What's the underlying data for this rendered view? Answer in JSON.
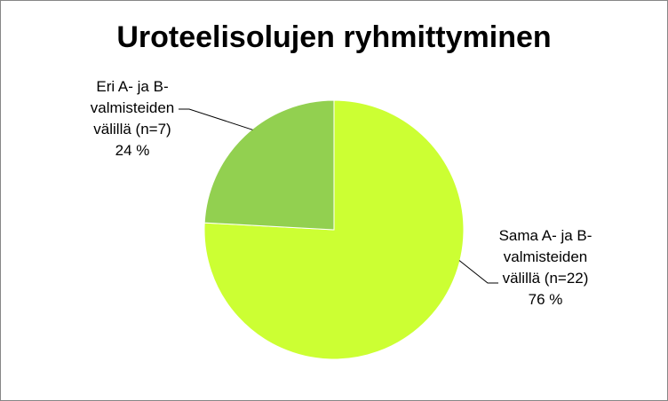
{
  "chart_data": {
    "type": "pie",
    "title": "Uroteelisolujen ryhmittyminen",
    "slices": [
      {
        "label_lines": [
          "Sama A- ja B-",
          "valmisteiden",
          "välillä (n=22)",
          "76 %"
        ],
        "n": 22,
        "percent": 76,
        "color": "#ccff33"
      },
      {
        "label_lines": [
          "Eri A- ja B-",
          "valmisteiden",
          "välillä (n=7)",
          "24 %"
        ],
        "n": 7,
        "percent": 24,
        "color": "#92d050"
      }
    ],
    "start_angle_deg": 0,
    "direction": "clockwise",
    "legend": "none"
  }
}
